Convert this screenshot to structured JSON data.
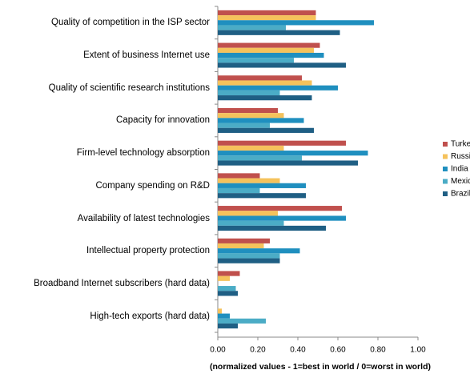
{
  "chart_data": {
    "type": "hbar",
    "x_label": "(normalized values - 1=best in world / 0=worst in world)",
    "categories": [
      "Quality of competition in the ISP sector",
      "Extent of business Internet use",
      "Quality of scientific research institutions",
      "Capacity for innovation",
      "Firm-level technology absorption",
      "Company spending on R&D",
      "Availability of latest technologies",
      "Intellectual property protection",
      "Broadband Internet subscribers (hard data)",
      "High-tech exports (hard data)"
    ],
    "series": [
      {
        "name": "Turkey",
        "color": "#c0504d",
        "values": [
          0.49,
          0.51,
          0.42,
          0.3,
          0.64,
          0.21,
          0.62,
          0.26,
          0.11,
          0
        ]
      },
      {
        "name": "Russia",
        "color": "#f5c25c",
        "values": [
          0.49,
          0.48,
          0.47,
          0.33,
          0.33,
          0.31,
          0.3,
          0.23,
          0.06,
          0.02
        ]
      },
      {
        "name": "India",
        "color": "#1f8fbf",
        "values": [
          0.78,
          0.53,
          0.6,
          0.43,
          0.75,
          0.44,
          0.64,
          0.41,
          0,
          0.06
        ]
      },
      {
        "name": "Mexico",
        "color": "#4bacc6",
        "values": [
          0.34,
          0.38,
          0.31,
          0.26,
          0.42,
          0.21,
          0.33,
          0.31,
          0.09,
          0.24
        ]
      },
      {
        "name": "Brazil",
        "color": "#1f5f84",
        "values": [
          0.61,
          0.64,
          0.47,
          0.48,
          0.7,
          0.44,
          0.54,
          0.31,
          0.1,
          0.1
        ]
      }
    ],
    "xlim": [
      0,
      1
    ],
    "xticks": [
      {
        "value": 0,
        "label": "0.00"
      },
      {
        "value": 0.2,
        "label": "0.20"
      },
      {
        "value": 0.4,
        "label": "0.40"
      },
      {
        "value": 0.6,
        "label": "0.60"
      },
      {
        "value": 0.8,
        "label": "0.80"
      },
      {
        "value": 1,
        "label": "1.00"
      }
    ],
    "legend": "right"
  }
}
